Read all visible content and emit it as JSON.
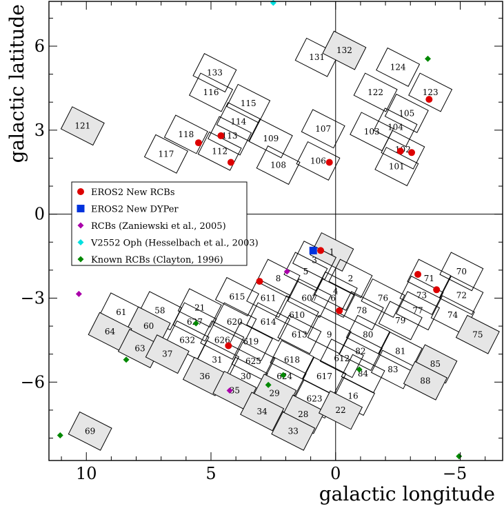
{
  "chart_data": {
    "type": "scatter",
    "xlabel": "galactic longitude",
    "ylabel": "galactic latitude",
    "xlim": [
      11.5,
      -6.7
    ],
    "ylim": [
      -8.8,
      7.6
    ],
    "xticks": [
      10,
      5,
      0,
      -5
    ],
    "yticks": [
      -6,
      -3,
      0,
      3,
      6
    ],
    "xtick_labels": [
      "10",
      "5",
      "0",
      "−5"
    ],
    "ytick_labels": [
      "−6",
      "−3",
      "0",
      "3",
      "6"
    ],
    "reference_lines": {
      "l": 0,
      "b": 0
    },
    "fields": [
      {
        "id": "1",
        "l": 0.15,
        "b": -1.35,
        "shaded": true
      },
      {
        "id": "3",
        "l": 0.85,
        "b": -1.65
      },
      {
        "id": "5",
        "l": 1.2,
        "b": -2.05
      },
      {
        "id": "2",
        "l": -0.6,
        "b": -2.3
      },
      {
        "id": "8",
        "l": 2.3,
        "b": -2.3
      },
      {
        "id": "4",
        "l": 0.0,
        "b": -2.75
      },
      {
        "id": "607",
        "l": 1.05,
        "b": -3.0
      },
      {
        "id": "611",
        "l": 2.7,
        "b": -3.0
      },
      {
        "id": "615",
        "l": 3.95,
        "b": -2.95
      },
      {
        "id": "6",
        "l": 0.1,
        "b": -3.0
      },
      {
        "id": "76",
        "l": -1.9,
        "b": -3.0
      },
      {
        "id": "78",
        "l": -1.05,
        "b": -3.45
      },
      {
        "id": "610",
        "l": 1.55,
        "b": -3.6
      },
      {
        "id": "614",
        "l": 2.7,
        "b": -3.85
      },
      {
        "id": "620",
        "l": 4.05,
        "b": -3.85
      },
      {
        "id": "21",
        "l": 5.45,
        "b": -3.35
      },
      {
        "id": "627",
        "l": 5.65,
        "b": -3.85
      },
      {
        "id": "58",
        "l": 7.05,
        "b": -3.45
      },
      {
        "id": "61",
        "l": 8.6,
        "b": -3.5
      },
      {
        "id": "60",
        "l": 7.5,
        "b": -4.0,
        "shaded": true
      },
      {
        "id": "64",
        "l": 9.05,
        "b": -4.2,
        "shaded": true
      },
      {
        "id": "63",
        "l": 7.85,
        "b": -4.8,
        "shaded": true
      },
      {
        "id": "632",
        "l": 5.95,
        "b": -4.5
      },
      {
        "id": "626",
        "l": 4.55,
        "b": -4.5
      },
      {
        "id": "619",
        "l": 3.4,
        "b": -4.55
      },
      {
        "id": "613",
        "l": 1.45,
        "b": -4.3
      },
      {
        "id": "9",
        "l": 0.25,
        "b": -4.3
      },
      {
        "id": "80",
        "l": -1.3,
        "b": -4.3
      },
      {
        "id": "79",
        "l": -2.6,
        "b": -3.8
      },
      {
        "id": "77",
        "l": -3.3,
        "b": -3.45
      },
      {
        "id": "73",
        "l": -3.45,
        "b": -2.9
      },
      {
        "id": "71",
        "l": -3.75,
        "b": -2.3
      },
      {
        "id": "70",
        "l": -5.05,
        "b": -2.05
      },
      {
        "id": "72",
        "l": -5.05,
        "b": -2.9
      },
      {
        "id": "74",
        "l": -4.7,
        "b": -3.6
      },
      {
        "id": "75",
        "l": -5.7,
        "b": -4.3,
        "shaded": true
      },
      {
        "id": "81",
        "l": -2.6,
        "b": -4.9
      },
      {
        "id": "82",
        "l": -1.0,
        "b": -4.9
      },
      {
        "id": "612",
        "l": -0.25,
        "b": -5.15
      },
      {
        "id": "618",
        "l": 1.75,
        "b": -5.2
      },
      {
        "id": "625",
        "l": 3.3,
        "b": -5.25
      },
      {
        "id": "31",
        "l": 4.75,
        "b": -5.2
      },
      {
        "id": "37",
        "l": 6.75,
        "b": -5.0,
        "shaded": true
      },
      {
        "id": "36",
        "l": 5.25,
        "b": -5.8,
        "shaded": true
      },
      {
        "id": "30",
        "l": 3.6,
        "b": -5.8
      },
      {
        "id": "624",
        "l": 2.05,
        "b": -5.8
      },
      {
        "id": "617",
        "l": 0.45,
        "b": -5.8
      },
      {
        "id": "84",
        "l": -1.1,
        "b": -5.7
      },
      {
        "id": "83",
        "l": -2.3,
        "b": -5.55
      },
      {
        "id": "85",
        "l": -4.0,
        "b": -5.35,
        "shaded": true
      },
      {
        "id": "88",
        "l": -3.6,
        "b": -5.95,
        "shaded": true
      },
      {
        "id": "16",
        "l": -0.7,
        "b": -6.5
      },
      {
        "id": "623",
        "l": 0.85,
        "b": -6.6
      },
      {
        "id": "29",
        "l": 2.45,
        "b": -6.4,
        "shaded": true
      },
      {
        "id": "35",
        "l": 4.05,
        "b": -6.3,
        "shaded": true
      },
      {
        "id": "34",
        "l": 2.95,
        "b": -7.05,
        "shaded": true
      },
      {
        "id": "28",
        "l": 1.3,
        "b": -7.15,
        "shaded": true
      },
      {
        "id": "22",
        "l": -0.2,
        "b": -7.0,
        "shaded": true
      },
      {
        "id": "33",
        "l": 1.7,
        "b": -7.75,
        "shaded": true
      },
      {
        "id": "69",
        "l": 9.85,
        "b": -7.75,
        "shaded": true
      },
      {
        "id": "121",
        "l": 10.15,
        "b": 3.15,
        "shaded": true
      },
      {
        "id": "117",
        "l": 6.8,
        "b": 2.15
      },
      {
        "id": "118",
        "l": 6.0,
        "b": 2.85
      },
      {
        "id": "112",
        "l": 4.65,
        "b": 2.25
      },
      {
        "id": "113",
        "l": 4.25,
        "b": 2.8
      },
      {
        "id": "114",
        "l": 3.9,
        "b": 3.3
      },
      {
        "id": "115",
        "l": 3.5,
        "b": 3.95
      },
      {
        "id": "116",
        "l": 5.0,
        "b": 4.35
      },
      {
        "id": "133",
        "l": 4.85,
        "b": 5.05
      },
      {
        "id": "109",
        "l": 2.6,
        "b": 2.7
      },
      {
        "id": "108",
        "l": 2.3,
        "b": 1.75
      },
      {
        "id": "107",
        "l": 0.5,
        "b": 3.05
      },
      {
        "id": "106",
        "l": 0.7,
        "b": 1.9
      },
      {
        "id": "131",
        "l": 0.75,
        "b": 5.6
      },
      {
        "id": "132",
        "l": -0.35,
        "b": 5.85,
        "shaded": true
      },
      {
        "id": "122",
        "l": -1.6,
        "b": 4.35
      },
      {
        "id": "124",
        "l": -2.5,
        "b": 5.25
      },
      {
        "id": "123",
        "l": -3.8,
        "b": 4.35
      },
      {
        "id": "105",
        "l": -2.85,
        "b": 3.6
      },
      {
        "id": "104",
        "l": -2.4,
        "b": 3.1
      },
      {
        "id": "103",
        "l": -1.45,
        "b": 2.95
      },
      {
        "id": "102",
        "l": -2.7,
        "b": 2.3
      },
      {
        "id": "101",
        "l": -2.45,
        "b": 1.7
      }
    ],
    "series": [
      {
        "name": "EROS2 New RCBs",
        "marker": "circle",
        "color": "#dd0000",
        "points": [
          [
            5.5,
            2.55
          ],
          [
            4.6,
            2.8
          ],
          [
            4.2,
            1.85
          ],
          [
            0.25,
            1.85
          ],
          [
            -2.6,
            2.25
          ],
          [
            -3.05,
            2.2
          ],
          [
            -3.75,
            4.1
          ],
          [
            0.6,
            -1.3
          ],
          [
            3.05,
            -2.4
          ],
          [
            -0.15,
            -3.45
          ],
          [
            4.3,
            -4.7
          ],
          [
            -3.3,
            -2.15
          ],
          [
            -4.05,
            -2.7
          ]
        ]
      },
      {
        "name": "EROS2 New DYPer",
        "marker": "square",
        "color": "#0033dd",
        "points": [
          [
            0.9,
            -1.3
          ]
        ]
      },
      {
        "name": "RCBs (Zaniewski et al., 2005)",
        "marker": "diamond",
        "color": "#aa00aa",
        "points": [
          [
            10.3,
            -2.85
          ],
          [
            1.95,
            -2.05
          ],
          [
            4.25,
            -6.3
          ]
        ]
      },
      {
        "name": "V2552 Oph (Hesselbach et al., 2003)",
        "marker": "diamond",
        "color": "#00e0e0",
        "points": [
          [
            2.5,
            7.55
          ]
        ]
      },
      {
        "name": "Known RCBs (Clayton, 1996)",
        "marker": "diamond",
        "color": "#008800",
        "points": [
          [
            -3.7,
            5.55
          ],
          [
            8.4,
            -5.2
          ],
          [
            5.6,
            -3.9
          ],
          [
            2.1,
            -5.75
          ],
          [
            2.7,
            -6.1
          ],
          [
            -0.95,
            -5.55
          ],
          [
            11.05,
            -7.9
          ],
          [
            -4.95,
            -8.65
          ]
        ]
      }
    ]
  }
}
